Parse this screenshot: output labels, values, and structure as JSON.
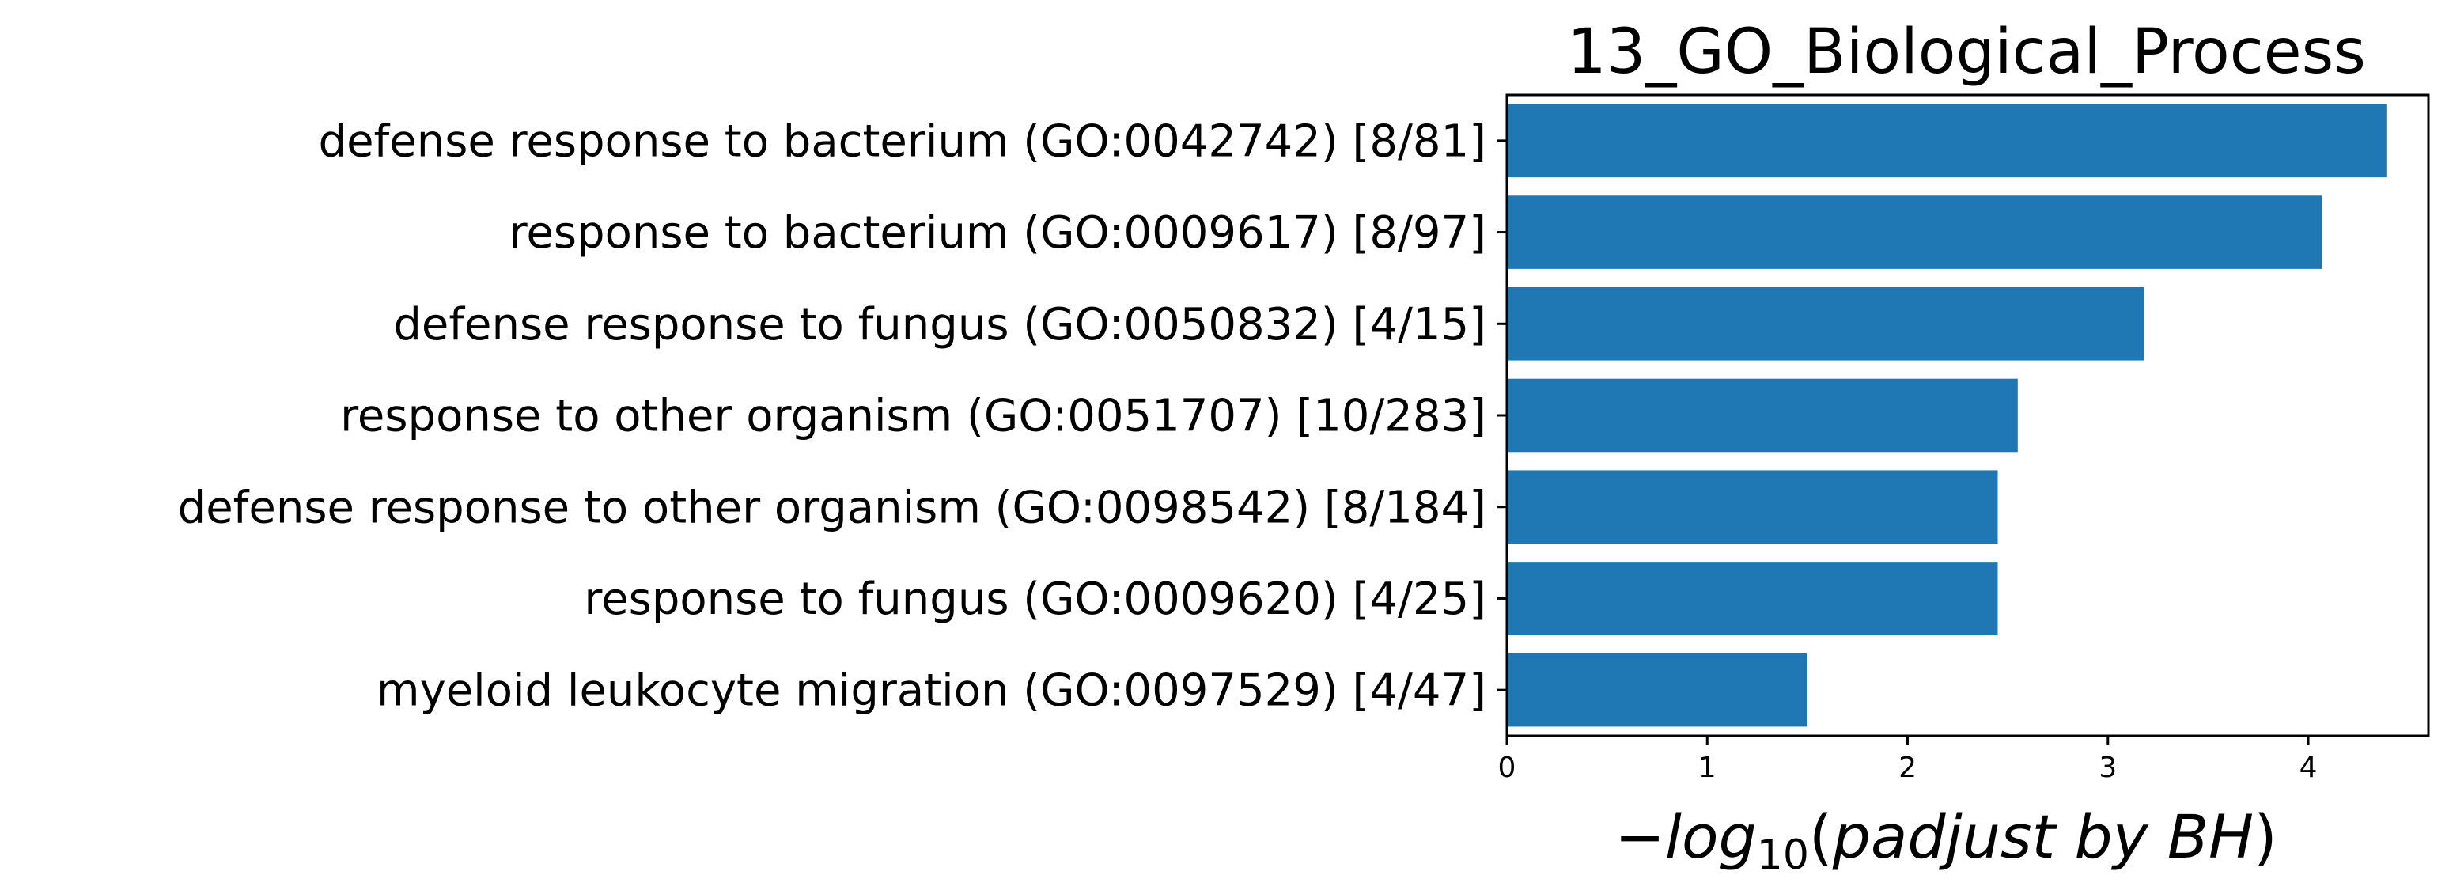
{
  "chart_data": {
    "type": "bar",
    "orientation": "horizontal",
    "title": "13_GO_Biological_Process",
    "xlabel": "−log10(padjust by BH)",
    "xlabel_parts": {
      "minus": "−",
      "log": "log",
      "sub": "10",
      "rest": "(padjust by BH)"
    },
    "categories": [
      "defense response to bacterium (GO:0042742) [8/81]",
      "response to bacterium (GO:0009617) [8/97]",
      "defense response to fungus (GO:0050832) [4/15]",
      "response to other organism (GO:0051707) [10/283]",
      "defense response to other organism (GO:0098542) [8/184]",
      "response to fungus (GO:0009620) [4/25]",
      "myeloid leukocyte migration (GO:0097529) [4/47]"
    ],
    "values": [
      4.39,
      4.07,
      3.18,
      2.55,
      2.45,
      2.45,
      1.5
    ],
    "xticks": [
      0,
      1,
      2,
      3,
      4
    ],
    "xlim": [
      0,
      4.6
    ],
    "bar_color": "#1f77b4",
    "grid": false,
    "legend": false
  }
}
